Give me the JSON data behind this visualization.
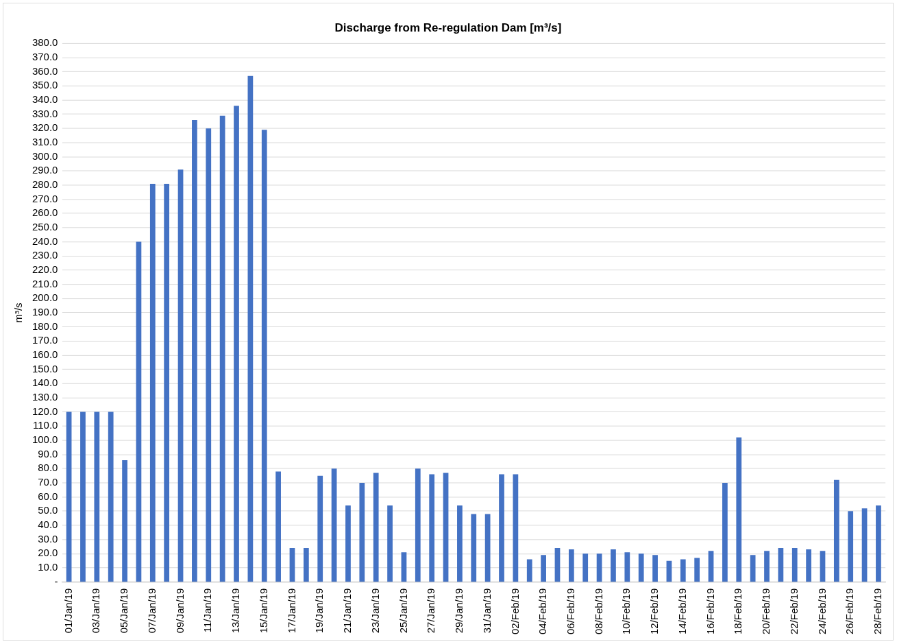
{
  "chart_data": {
    "type": "bar",
    "title": "Discharge from Re-regulation Dam [m³/s]",
    "ylabel": "m³/s",
    "categories": [
      "01/Jan/19",
      null,
      "03/Jan/19",
      null,
      "05/Jan/19",
      null,
      "07/Jan/19",
      null,
      "09/Jan/19",
      null,
      "11/Jan/19",
      null,
      "13/Jan/19",
      null,
      "15/Jan/19",
      null,
      "17/Jan/19",
      null,
      "19/Jan/19",
      null,
      "21/Jan/19",
      null,
      "23/Jan/19",
      null,
      "25/Jan/19",
      null,
      "27/Jan/19",
      null,
      "29/Jan/19",
      null,
      "31/Jan/19",
      null,
      "02/Feb/19",
      null,
      "04/Feb/19",
      null,
      "06/Feb/19",
      null,
      "08/Feb/19",
      null,
      "10/Feb/19",
      null,
      "12/Feb/19",
      null,
      "14/Feb/19",
      null,
      "16/Feb/19",
      null,
      "18/Feb/19",
      null,
      "20/Feb/19",
      null,
      "22/Feb/19",
      null,
      "24/Feb/19",
      null,
      "26/Feb/19",
      null,
      "28/Feb/19"
    ],
    "values": [
      120,
      120,
      120,
      120,
      86,
      240,
      281,
      281,
      291,
      326,
      320,
      329,
      336,
      357,
      319,
      78,
      24,
      24,
      75,
      80,
      54,
      70,
      77,
      54,
      21,
      80,
      76,
      77,
      54,
      48,
      48,
      76,
      76,
      16,
      19,
      24,
      23,
      20,
      20,
      23,
      21,
      20,
      19,
      15,
      16,
      17,
      22,
      70,
      102,
      19,
      22,
      24,
      24,
      23,
      22,
      72,
      50,
      52,
      54
    ],
    "color": "#4472c4",
    "ylim": [
      0,
      380
    ],
    "yticks": [
      {
        "value": 0,
        "label": "-"
      },
      {
        "value": 10,
        "label": "10.0"
      },
      {
        "value": 20,
        "label": "20.0"
      },
      {
        "value": 30,
        "label": "30.0"
      },
      {
        "value": 40,
        "label": "40.0"
      },
      {
        "value": 50,
        "label": "50.0"
      },
      {
        "value": 60,
        "label": "60.0"
      },
      {
        "value": 70,
        "label": "70.0"
      },
      {
        "value": 80,
        "label": "80.0"
      },
      {
        "value": 90,
        "label": "90.0"
      },
      {
        "value": 100,
        "label": "100.0"
      },
      {
        "value": 110,
        "label": "110.0"
      },
      {
        "value": 120,
        "label": "120.0"
      },
      {
        "value": 130,
        "label": "130.0"
      },
      {
        "value": 140,
        "label": "140.0"
      },
      {
        "value": 150,
        "label": "150.0"
      },
      {
        "value": 160,
        "label": "160.0"
      },
      {
        "value": 170,
        "label": "170.0"
      },
      {
        "value": 180,
        "label": "180.0"
      },
      {
        "value": 190,
        "label": "190.0"
      },
      {
        "value": 200,
        "label": "200.0"
      },
      {
        "value": 210,
        "label": "210.0"
      },
      {
        "value": 220,
        "label": "220.0"
      },
      {
        "value": 230,
        "label": "230.0"
      },
      {
        "value": 240,
        "label": "240.0"
      },
      {
        "value": 250,
        "label": "250.0"
      },
      {
        "value": 260,
        "label": "260.0"
      },
      {
        "value": 270,
        "label": "270.0"
      },
      {
        "value": 280,
        "label": "280.0"
      },
      {
        "value": 290,
        "label": "290.0"
      },
      {
        "value": 300,
        "label": "300.0"
      },
      {
        "value": 310,
        "label": "310.0"
      },
      {
        "value": 320,
        "label": "320.0"
      },
      {
        "value": 330,
        "label": "330.0"
      },
      {
        "value": 340,
        "label": "340.0"
      },
      {
        "value": 350,
        "label": "350.0"
      },
      {
        "value": 360,
        "label": "360.0"
      },
      {
        "value": 370,
        "label": "370.0"
      },
      {
        "value": 380,
        "label": "380.0"
      }
    ],
    "grid": "y"
  }
}
